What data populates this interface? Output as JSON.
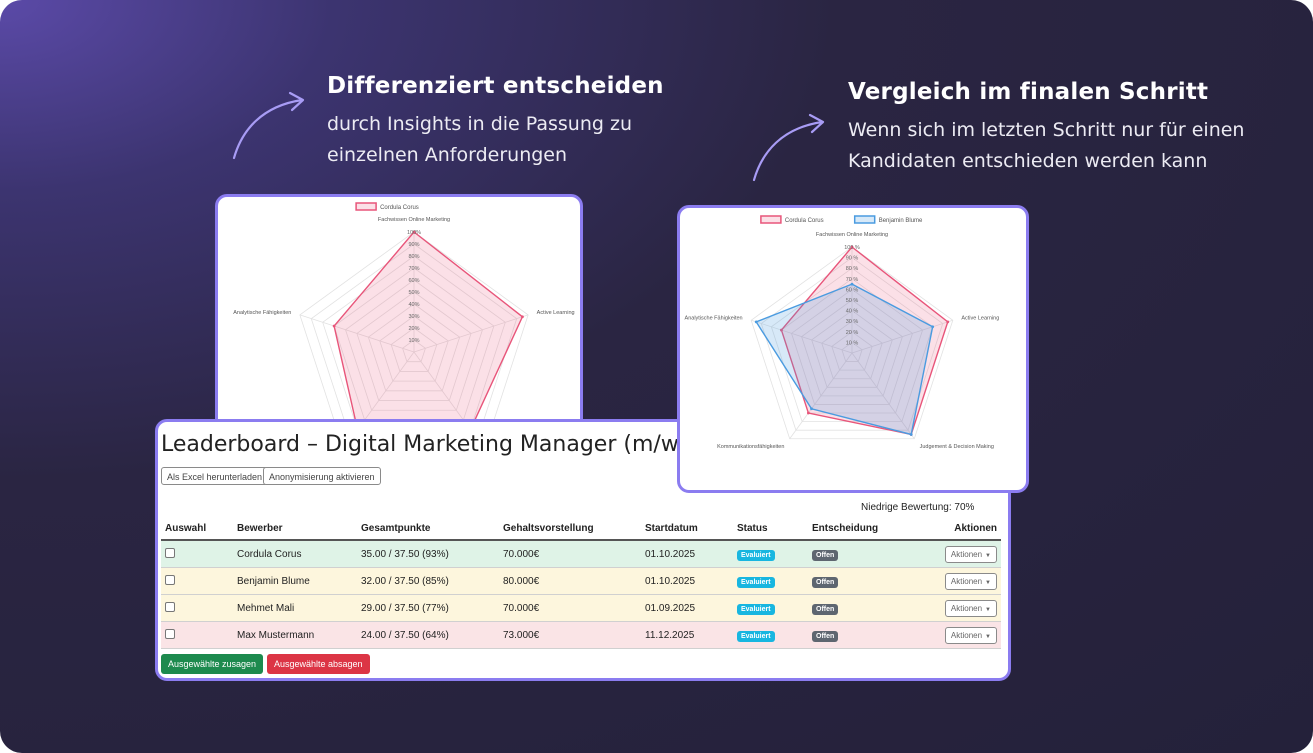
{
  "captions": [
    {
      "heading": "Differenziert entscheiden",
      "sub1": "durch Insights in die Passung zu",
      "sub2": "einzelnen Anforderungen"
    },
    {
      "heading": "Vergleich im finalen Schritt",
      "sub1": "Wenn sich im letzten Schritt nur für einen",
      "sub2": "Kandidaten entschieden werden kann"
    }
  ],
  "radar_single": {
    "legend": [
      "Cordula Corus"
    ],
    "axes": [
      "Fachwissen Online Marketing",
      "Active Learning",
      "",
      "",
      "Analytische Fähigkeiten"
    ],
    "ticks": [
      "10%",
      "20%",
      "30%",
      "40%",
      "50%",
      "60%",
      "70%",
      "80%",
      "90%",
      "100%"
    ],
    "series": [
      {
        "name": "Cordula Corus",
        "values": [
          100,
          95,
          80,
          80,
          70
        ]
      }
    ]
  },
  "radar_compare": {
    "legend": [
      "Cordula Corus",
      "Benjamin Blume"
    ],
    "axes": [
      "Fachwissen Online Marketing",
      "Active Learning",
      "Judgement & Decision Making",
      "Kommunikationsfähigkeiten",
      "Analytische Fähigkeiten"
    ],
    "ticks": [
      "10 %",
      "20 %",
      "30 %",
      "40 %",
      "50 %",
      "60 %",
      "70 %",
      "80 %",
      "90 %",
      "100 %"
    ],
    "series": [
      {
        "name": "Cordula Corus",
        "values": [
          100,
          95,
          95,
          70,
          70
        ]
      },
      {
        "name": "Benjamin Blume",
        "values": [
          65,
          80,
          95,
          65,
          95
        ]
      }
    ]
  },
  "colors": {
    "cordula": "#e8557a",
    "benjamin": "#4a9be0",
    "accent": "#8b7cf0"
  },
  "leaderboard": {
    "title": "Leaderboard – Digital Marketing Manager (m/w/d) –",
    "excel_button": "Als Excel herunterladen",
    "anon_button": "Anonymisierung aktivieren",
    "low_rating": "Niedrige Bewertung: 70%",
    "columns": [
      "Auswahl",
      "Bewerber",
      "Gesamtpunkte",
      "Gehaltsvorstellung",
      "Startdatum",
      "Status",
      "Entscheidung",
      "Aktionen"
    ],
    "rows": [
      {
        "name": "Cordula Corus",
        "points": "35.00 / 37.50 (93%)",
        "salary": "70.000€",
        "start": "01.10.2025",
        "status": "Evaluiert",
        "decision": "Offen",
        "action": "Aktionen"
      },
      {
        "name": "Benjamin Blume",
        "points": "32.00 / 37.50 (85%)",
        "salary": "80.000€",
        "start": "01.10.2025",
        "status": "Evaluiert",
        "decision": "Offen",
        "action": "Aktionen"
      },
      {
        "name": "Mehmet Mali",
        "points": "29.00 / 37.50 (77%)",
        "salary": "70.000€",
        "start": "01.09.2025",
        "status": "Evaluiert",
        "decision": "Offen",
        "action": "Aktionen"
      },
      {
        "name": "Max Mustermann",
        "points": "24.00 / 37.50 (64%)",
        "salary": "73.000€",
        "start": "11.12.2025",
        "status": "Evaluiert",
        "decision": "Offen",
        "action": "Aktionen"
      }
    ],
    "accept_button": "Ausgewählte zusagen",
    "reject_button": "Ausgewählte absagen"
  }
}
